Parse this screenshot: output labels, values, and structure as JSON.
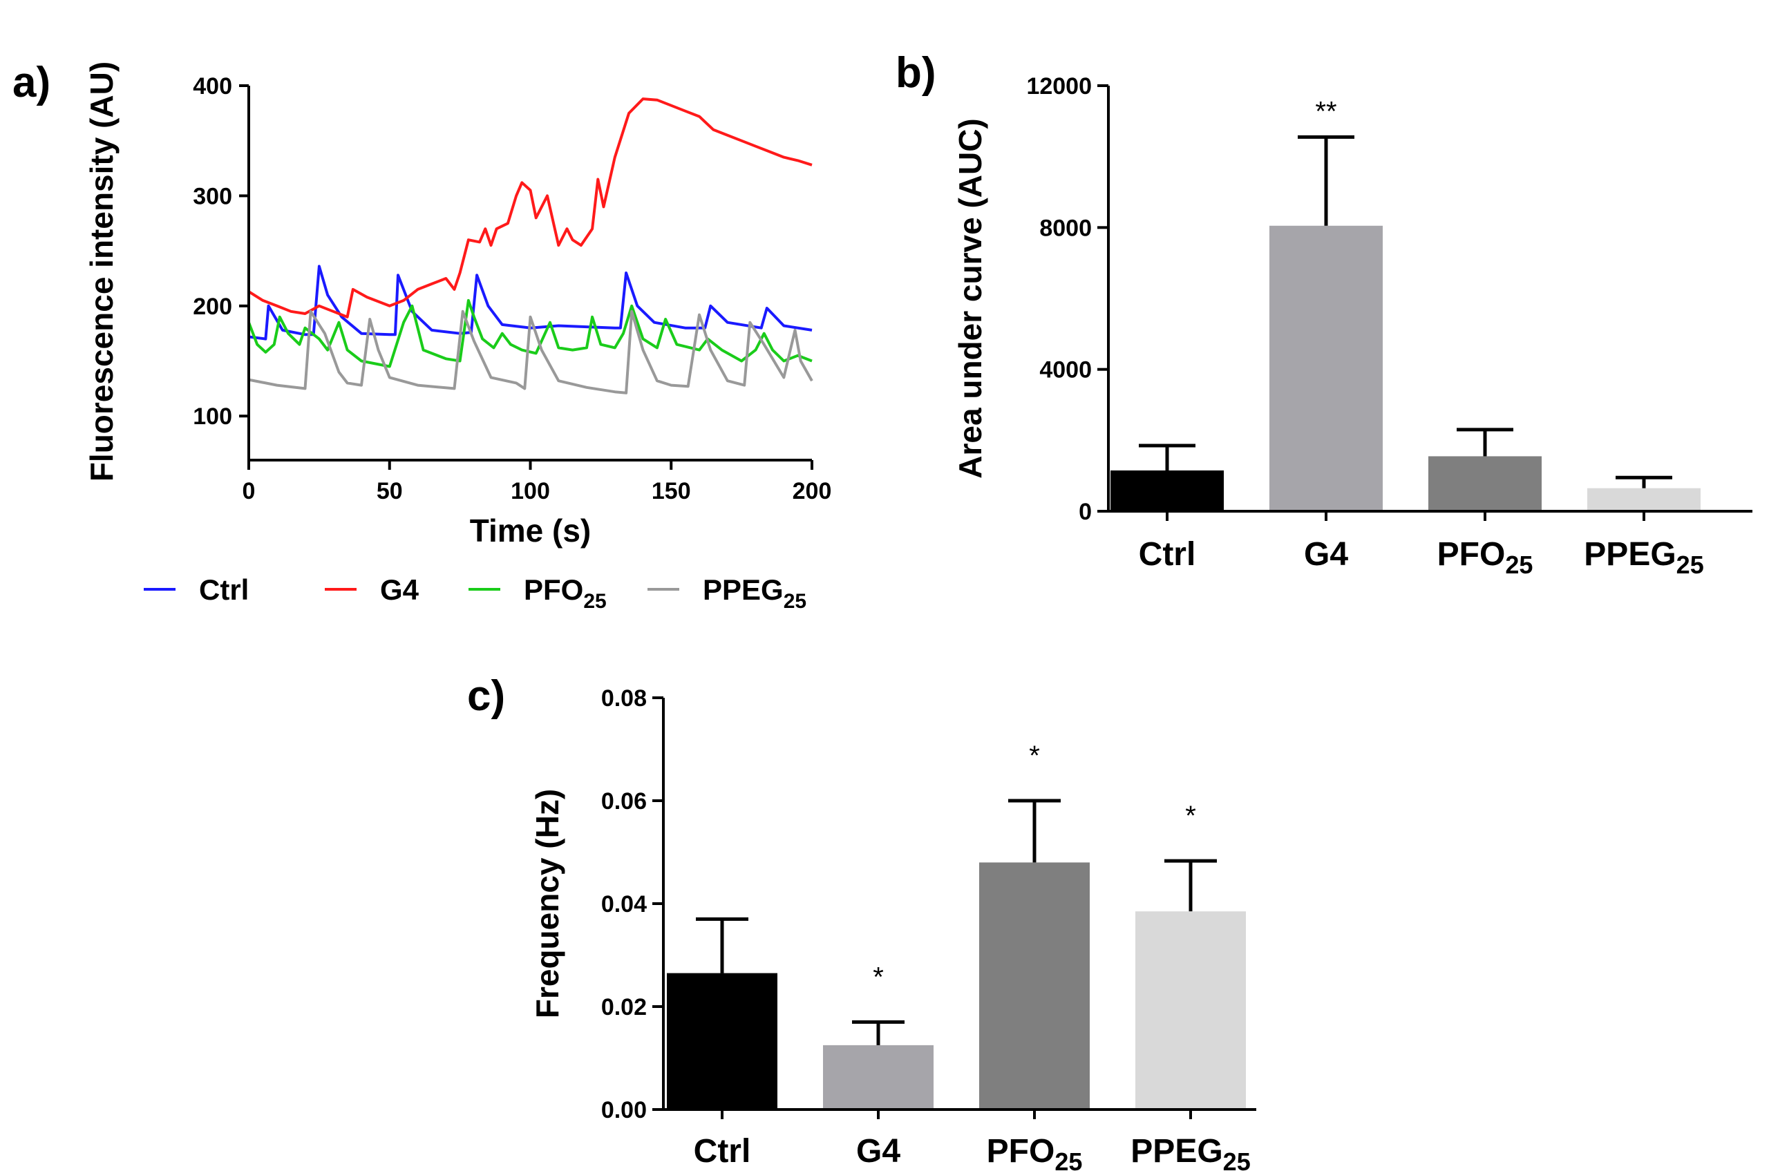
{
  "chart_data": [
    {
      "panel": "a)",
      "type": "line",
      "xlabel": "Time (s)",
      "ylabel": "Fluorescence intensity (AU)",
      "xlim": [
        0,
        200
      ],
      "ylim": [
        60,
        400
      ],
      "xticks": [
        0,
        50,
        100,
        150,
        200
      ],
      "yticks": [
        100,
        200,
        300,
        400
      ],
      "series": [
        {
          "name": "Ctrl",
          "sub": "",
          "color": "#1a1aff",
          "points": [
            [
              0,
              172
            ],
            [
              6,
              170
            ],
            [
              7,
              200
            ],
            [
              12,
              178
            ],
            [
              20,
              174
            ],
            [
              23,
              174
            ],
            [
              25,
              236
            ],
            [
              28,
              210
            ],
            [
              33,
              190
            ],
            [
              40,
              175
            ],
            [
              50,
              174
            ],
            [
              52,
              174
            ],
            [
              53,
              228
            ],
            [
              58,
              195
            ],
            [
              65,
              178
            ],
            [
              75,
              175
            ],
            [
              79,
              176
            ],
            [
              81,
              228
            ],
            [
              85,
              200
            ],
            [
              90,
              183
            ],
            [
              100,
              180
            ],
            [
              110,
              182
            ],
            [
              120,
              181
            ],
            [
              130,
              180
            ],
            [
              132,
              180
            ],
            [
              134,
              230
            ],
            [
              138,
              200
            ],
            [
              144,
              185
            ],
            [
              155,
              180
            ],
            [
              162,
              180
            ],
            [
              164,
              200
            ],
            [
              170,
              185
            ],
            [
              182,
              180
            ],
            [
              184,
              198
            ],
            [
              190,
              182
            ],
            [
              200,
              178
            ]
          ]
        },
        {
          "name": "G4",
          "sub": "",
          "color": "#ff1a1a",
          "points": [
            [
              0,
              213
            ],
            [
              5,
              205
            ],
            [
              10,
              200
            ],
            [
              15,
              195
            ],
            [
              20,
              193
            ],
            [
              25,
              200
            ],
            [
              30,
              195
            ],
            [
              35,
              190
            ],
            [
              37,
              215
            ],
            [
              42,
              208
            ],
            [
              50,
              200
            ],
            [
              55,
              205
            ],
            [
              60,
              215
            ],
            [
              65,
              220
            ],
            [
              70,
              225
            ],
            [
              73,
              215
            ],
            [
              75,
              230
            ],
            [
              78,
              260
            ],
            [
              82,
              258
            ],
            [
              84,
              270
            ],
            [
              86,
              255
            ],
            [
              88,
              270
            ],
            [
              92,
              275
            ],
            [
              95,
              300
            ],
            [
              97,
              312
            ],
            [
              100,
              305
            ],
            [
              102,
              280
            ],
            [
              106,
              300
            ],
            [
              110,
              255
            ],
            [
              113,
              270
            ],
            [
              115,
              260
            ],
            [
              118,
              255
            ],
            [
              122,
              270
            ],
            [
              124,
              315
            ],
            [
              126,
              290
            ],
            [
              130,
              335
            ],
            [
              135,
              375
            ],
            [
              140,
              388
            ],
            [
              145,
              387
            ],
            [
              150,
              382
            ],
            [
              155,
              377
            ],
            [
              160,
              372
            ],
            [
              165,
              360
            ],
            [
              170,
              355
            ],
            [
              175,
              350
            ],
            [
              180,
              345
            ],
            [
              185,
              340
            ],
            [
              190,
              335
            ],
            [
              195,
              332
            ],
            [
              200,
              328
            ]
          ]
        },
        {
          "name": "PFO",
          "sub": "25",
          "color": "#1acc1a",
          "points": [
            [
              0,
              185
            ],
            [
              3,
              165
            ],
            [
              6,
              158
            ],
            [
              9,
              165
            ],
            [
              11,
              190
            ],
            [
              14,
              175
            ],
            [
              18,
              165
            ],
            [
              20,
              180
            ],
            [
              25,
              170
            ],
            [
              28,
              160
            ],
            [
              32,
              185
            ],
            [
              35,
              160
            ],
            [
              40,
              150
            ],
            [
              50,
              145
            ],
            [
              55,
              185
            ],
            [
              58,
              200
            ],
            [
              62,
              160
            ],
            [
              70,
              152
            ],
            [
              75,
              150
            ],
            [
              78,
              205
            ],
            [
              80,
              190
            ],
            [
              83,
              170
            ],
            [
              87,
              162
            ],
            [
              90,
              175
            ],
            [
              93,
              165
            ],
            [
              97,
              160
            ],
            [
              102,
              157
            ],
            [
              107,
              185
            ],
            [
              110,
              162
            ],
            [
              115,
              160
            ],
            [
              120,
              162
            ],
            [
              122,
              190
            ],
            [
              125,
              165
            ],
            [
              130,
              162
            ],
            [
              133,
              175
            ],
            [
              136,
              200
            ],
            [
              140,
              170
            ],
            [
              145,
              162
            ],
            [
              148,
              188
            ],
            [
              152,
              165
            ],
            [
              160,
              160
            ],
            [
              163,
              170
            ],
            [
              168,
              160
            ],
            [
              175,
              150
            ],
            [
              180,
              160
            ],
            [
              183,
              175
            ],
            [
              186,
              160
            ],
            [
              190,
              150
            ],
            [
              195,
              155
            ],
            [
              200,
              150
            ]
          ]
        },
        {
          "name": "PPEG",
          "sub": "25",
          "color": "#999999",
          "points": [
            [
              0,
              133
            ],
            [
              10,
              128
            ],
            [
              20,
              125
            ],
            [
              22,
              195
            ],
            [
              27,
              175
            ],
            [
              32,
              140
            ],
            [
              35,
              130
            ],
            [
              40,
              128
            ],
            [
              43,
              188
            ],
            [
              46,
              160
            ],
            [
              50,
              135
            ],
            [
              60,
              128
            ],
            [
              73,
              125
            ],
            [
              76,
              195
            ],
            [
              80,
              168
            ],
            [
              86,
              135
            ],
            [
              95,
              130
            ],
            [
              98,
              125
            ],
            [
              100,
              190
            ],
            [
              104,
              160
            ],
            [
              110,
              132
            ],
            [
              120,
              126
            ],
            [
              130,
              122
            ],
            [
              134,
              121
            ],
            [
              136,
              195
            ],
            [
              140,
              160
            ],
            [
              145,
              132
            ],
            [
              150,
              128
            ],
            [
              156,
              127
            ],
            [
              160,
              192
            ],
            [
              164,
              160
            ],
            [
              170,
              132
            ],
            [
              176,
              128
            ],
            [
              178,
              185
            ],
            [
              183,
              165
            ],
            [
              190,
              135
            ],
            [
              194,
              178
            ],
            [
              196,
              150
            ],
            [
              200,
              132
            ]
          ]
        }
      ]
    },
    {
      "panel": "b)",
      "type": "bar",
      "ylabel": "Area under curve (AUC)",
      "ylim": [
        0,
        12000
      ],
      "yticks": [
        0,
        4000,
        8000,
        12000
      ],
      "categories": [
        {
          "main": "Ctrl",
          "sub": ""
        },
        {
          "main": "G4",
          "sub": ""
        },
        {
          "main": "PFO",
          "sub": "25"
        },
        {
          "main": "PPEG",
          "sub": "25"
        }
      ],
      "values": [
        1150,
        8050,
        1550,
        650
      ],
      "errors": [
        700,
        2500,
        750,
        300
      ],
      "significance": [
        "",
        "**",
        "",
        ""
      ],
      "colors": [
        "#000000",
        "#a6a5aa",
        "#7f7f7f",
        "#d9d9d9"
      ]
    },
    {
      "panel": "c)",
      "type": "bar",
      "ylabel": "Frequency (Hz)",
      "ylim": [
        0,
        0.08
      ],
      "yticks": [
        "0.00",
        "0.02",
        "0.04",
        "0.06",
        "0.08"
      ],
      "categories": [
        {
          "main": "Ctrl",
          "sub": ""
        },
        {
          "main": "G4",
          "sub": ""
        },
        {
          "main": "PFO",
          "sub": "25"
        },
        {
          "main": "PPEG",
          "sub": "25"
        }
      ],
      "values": [
        0.0265,
        0.0125,
        0.048,
        0.0385
      ],
      "errors": [
        0.0105,
        0.0045,
        0.012,
        0.0098
      ],
      "significance": [
        "",
        "*",
        "*",
        "*"
      ],
      "colors": [
        "#000000",
        "#a6a5aa",
        "#7f7f7f",
        "#d9d9d9"
      ]
    }
  ],
  "colors": {
    "ctrl": "#1a1aff",
    "g4": "#ff1a1a",
    "pfo": "#1acc1a",
    "ppeg": "#999999"
  }
}
